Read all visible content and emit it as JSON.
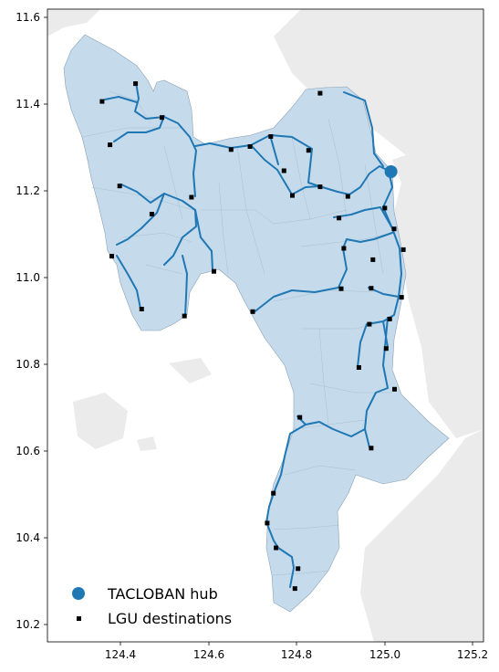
{
  "map": {
    "x_ticks": [
      "124.4",
      "124.6",
      "124.8",
      "125.0",
      "125.2"
    ],
    "y_ticks": [
      "11.6",
      "11.4",
      "11.2",
      "11.0",
      "10.8",
      "10.6",
      "10.4",
      "10.2"
    ],
    "colors": {
      "land_fill": "#c5dbec",
      "land_edge": "#8aa0b4",
      "background_land": "#ebebeb",
      "route": "#1f77b4",
      "hub": "#1f77b4",
      "destination": "#000000"
    }
  },
  "legend": {
    "hub_label": "TACLOBAN hub",
    "destination_label": "LGU destinations"
  },
  "chart_data": {
    "type": "map",
    "xlim": [
      124.23,
      125.22
    ],
    "ylim": [
      10.16,
      11.62
    ],
    "x_ticks": [
      124.4,
      124.6,
      124.8,
      125.0,
      125.2
    ],
    "y_ticks": [
      11.6,
      11.4,
      11.2,
      11.0,
      10.8,
      10.6,
      10.4,
      10.2
    ],
    "hub": {
      "name": "TACLOBAN hub",
      "lon": 125.01,
      "lat": 11.245
    },
    "destinations": [
      [
        124.43,
        11.448
      ],
      [
        124.354,
        11.407
      ],
      [
        124.49,
        11.37
      ],
      [
        124.372,
        11.307
      ],
      [
        124.737,
        11.326
      ],
      [
        124.69,
        11.303
      ],
      [
        124.647,
        11.296
      ],
      [
        124.767,
        11.247
      ],
      [
        124.823,
        11.294
      ],
      [
        124.849,
        11.426
      ],
      [
        124.394,
        11.212
      ],
      [
        124.467,
        11.147
      ],
      [
        124.557,
        11.186
      ],
      [
        124.786,
        11.19
      ],
      [
        124.849,
        11.21
      ],
      [
        124.912,
        11.188
      ],
      [
        124.892,
        11.138
      ],
      [
        124.996,
        11.161
      ],
      [
        125.017,
        11.113
      ],
      [
        125.038,
        11.065
      ],
      [
        124.903,
        11.068
      ],
      [
        124.969,
        11.042
      ],
      [
        124.376,
        11.05
      ],
      [
        124.608,
        11.015
      ],
      [
        124.897,
        10.975
      ],
      [
        124.965,
        10.976
      ],
      [
        125.034,
        10.955
      ],
      [
        124.444,
        10.928
      ],
      [
        124.541,
        10.912
      ],
      [
        124.696,
        10.922
      ],
      [
        124.961,
        10.893
      ],
      [
        125.007,
        10.905
      ],
      [
        124.999,
        10.837
      ],
      [
        124.937,
        10.793
      ],
      [
        125.018,
        10.743
      ],
      [
        124.803,
        10.678
      ],
      [
        124.965,
        10.607
      ],
      [
        124.743,
        10.503
      ],
      [
        124.729,
        10.434
      ],
      [
        124.749,
        10.377
      ],
      [
        124.799,
        10.329
      ],
      [
        124.792,
        10.283
      ]
    ]
  }
}
